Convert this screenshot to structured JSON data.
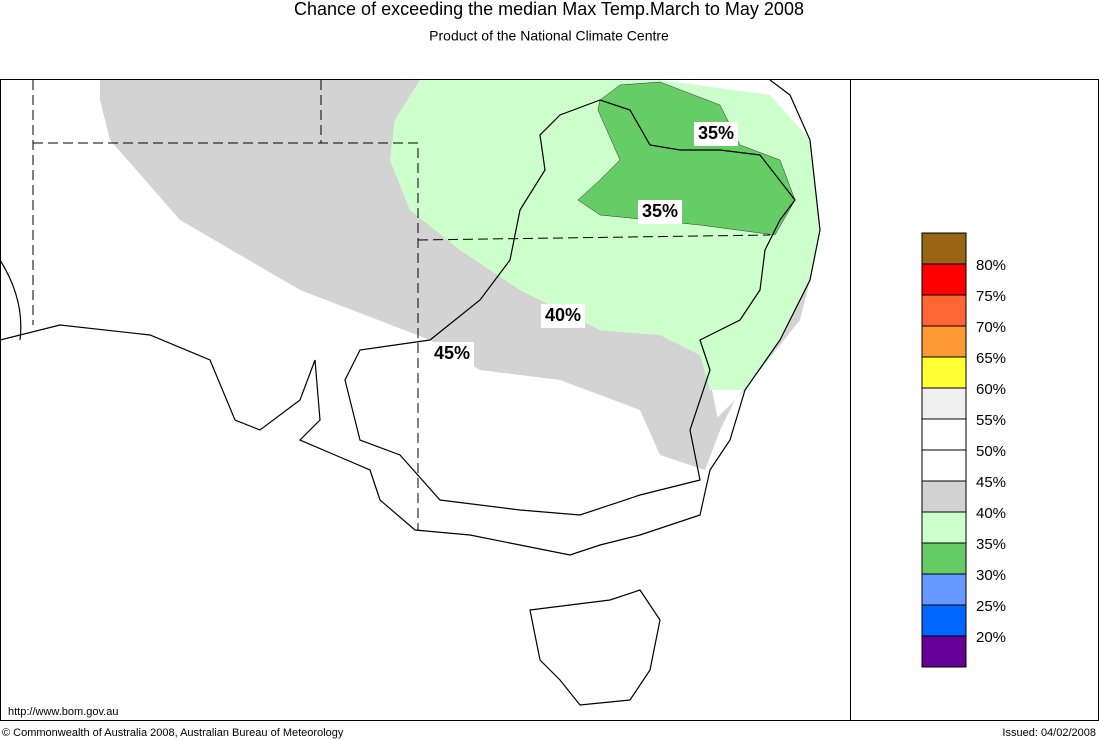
{
  "header": {
    "title": "Chance of exceeding the median Max Temp.March to May 2008",
    "subtitle": "Product of the National Climate Centre"
  },
  "map": {
    "contour_labels": [
      "35%",
      "35%",
      "40%",
      "45%"
    ]
  },
  "legend": {
    "colors": [
      "#996515",
      "#ff0000",
      "#ff6633",
      "#ff9933",
      "#ffff33",
      "#f0f0f0",
      "#ffffff",
      "#ffffff",
      "#d3d3d3",
      "#ccffcc",
      "#66cc66",
      "#6699ff",
      "#0066ff",
      "#660099"
    ],
    "labels": [
      "80%",
      "75%",
      "70%",
      "65%",
      "60%",
      "55%",
      "50%",
      "45%",
      "40%",
      "35%",
      "30%",
      "25%",
      "20%"
    ]
  },
  "footer": {
    "url": "http://www.bom.gov.au",
    "copyright": "© Commonwealth of Australia 2008, Australian Bureau of Meteorology",
    "issued": "Issued: 04/02/2008"
  }
}
